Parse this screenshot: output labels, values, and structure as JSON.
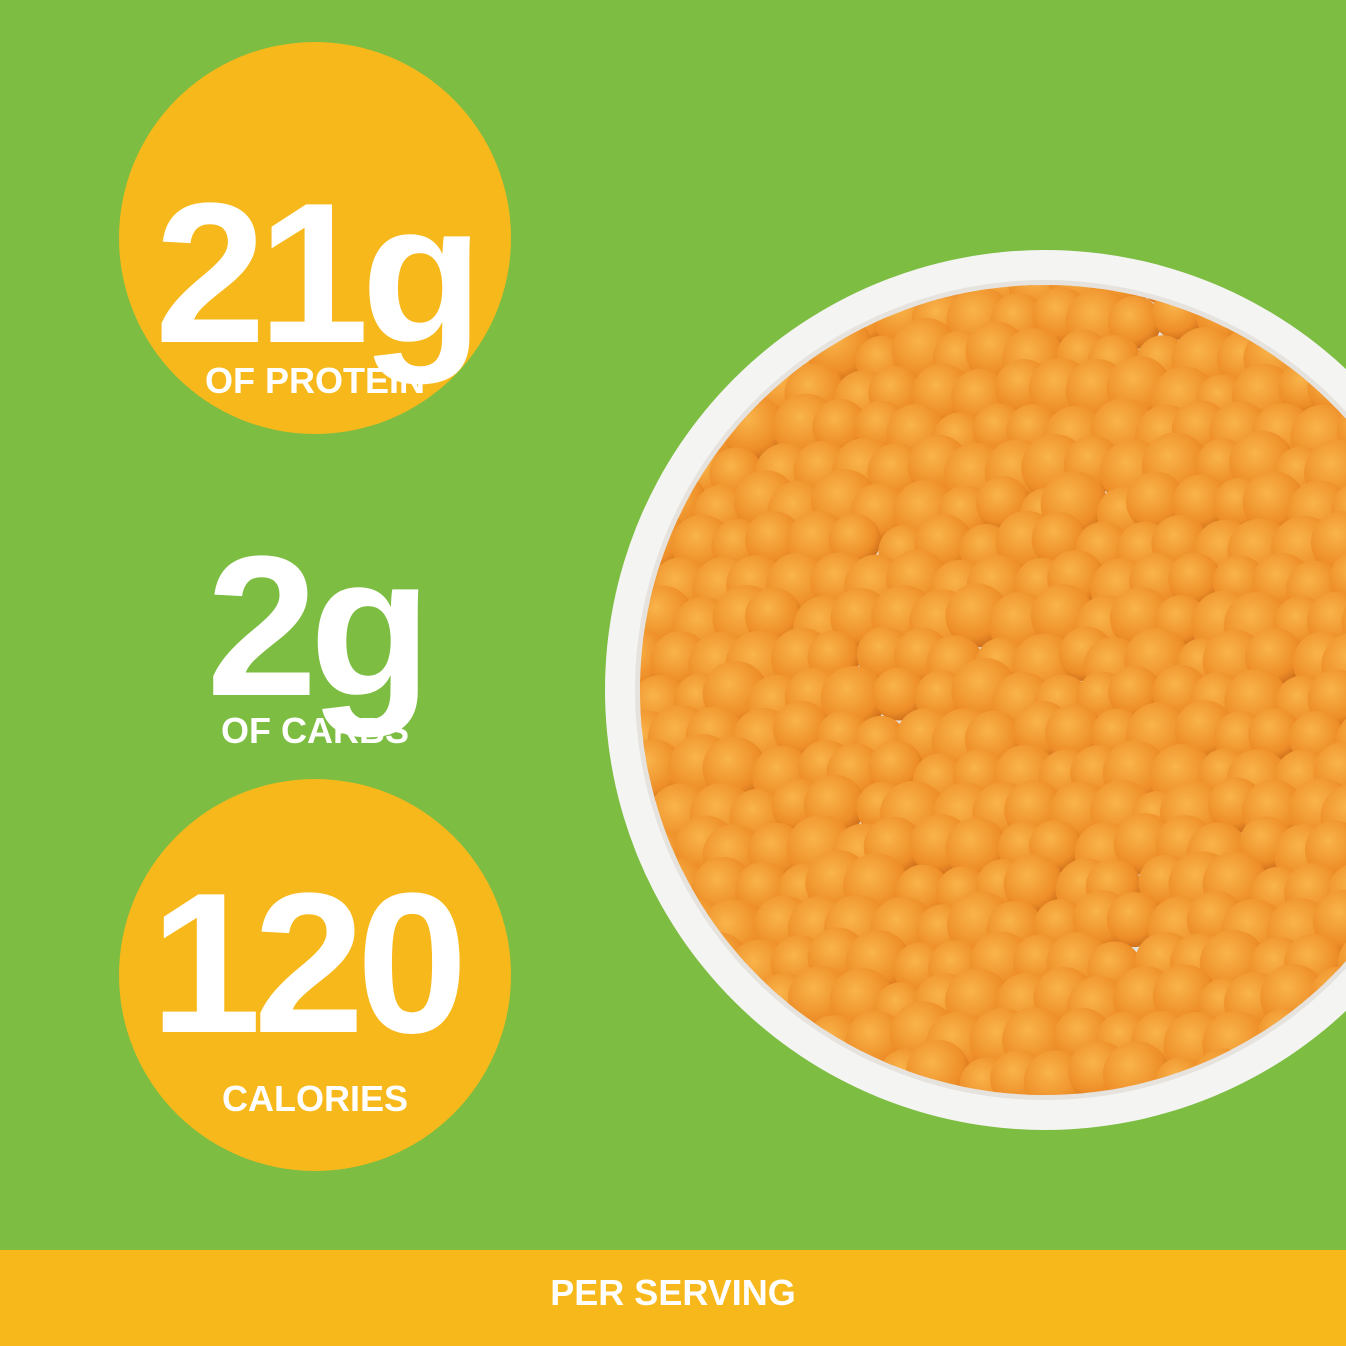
{
  "stats": [
    {
      "value": "21g",
      "label": "OF PROTEIN"
    },
    {
      "value": "2g",
      "label": "OF CARBS"
    },
    {
      "value": "120",
      "label": "CALORIES"
    }
  ],
  "footer": "PER SERVING"
}
